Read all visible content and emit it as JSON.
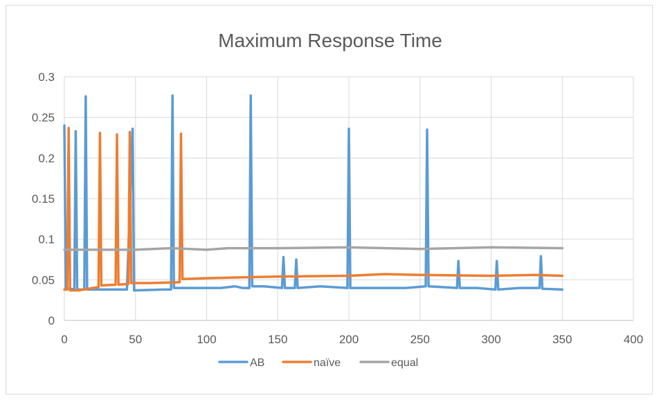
{
  "chart_data": {
    "type": "line",
    "title": "Maximum Response Time",
    "xlabel": "",
    "ylabel": "",
    "xlim": [
      0,
      400
    ],
    "ylim": [
      0,
      0.3
    ],
    "x_ticks": [
      0,
      50,
      100,
      150,
      200,
      250,
      300,
      350,
      400
    ],
    "x_tick_labels": [
      "0",
      "50",
      "100",
      "150",
      "200",
      "250",
      "300",
      "350",
      "400"
    ],
    "y_ticks": [
      0,
      0.05,
      0.1,
      0.15,
      0.2,
      0.25,
      0.3
    ],
    "y_tick_labels": [
      "0",
      "0.05",
      "0.1",
      "0.15",
      "0.2",
      "0.25",
      "0.3"
    ],
    "grid": true,
    "legend_position": "bottom",
    "series": [
      {
        "name": "AB",
        "color": "#5b9bd5",
        "points": [
          [
            0,
            0.24
          ],
          [
            1,
            0.04
          ],
          [
            7,
            0.038
          ],
          [
            8,
            0.233
          ],
          [
            9,
            0.038
          ],
          [
            14,
            0.038
          ],
          [
            15,
            0.276
          ],
          [
            16,
            0.038
          ],
          [
            30,
            0.038
          ],
          [
            44,
            0.038
          ],
          [
            48,
            0.236
          ],
          [
            49,
            0.037
          ],
          [
            70,
            0.038
          ],
          [
            75,
            0.038
          ],
          [
            76,
            0.277
          ],
          [
            77,
            0.04
          ],
          [
            100,
            0.04
          ],
          [
            110,
            0.04
          ],
          [
            120,
            0.042
          ],
          [
            125,
            0.04
          ],
          [
            130,
            0.04
          ],
          [
            131,
            0.277
          ],
          [
            132,
            0.042
          ],
          [
            140,
            0.042
          ],
          [
            153,
            0.04
          ],
          [
            154,
            0.078
          ],
          [
            155,
            0.04
          ],
          [
            162,
            0.04
          ],
          [
            163,
            0.075
          ],
          [
            164,
            0.04
          ],
          [
            180,
            0.042
          ],
          [
            199,
            0.04
          ],
          [
            200,
            0.236
          ],
          [
            201,
            0.04
          ],
          [
            220,
            0.04
          ],
          [
            240,
            0.04
          ],
          [
            254,
            0.042
          ],
          [
            255,
            0.235
          ],
          [
            256,
            0.042
          ],
          [
            276,
            0.04
          ],
          [
            277,
            0.073
          ],
          [
            278,
            0.04
          ],
          [
            290,
            0.04
          ],
          [
            303,
            0.038
          ],
          [
            304,
            0.073
          ],
          [
            305,
            0.038
          ],
          [
            320,
            0.04
          ],
          [
            334,
            0.04
          ],
          [
            335,
            0.079
          ],
          [
            336,
            0.039
          ],
          [
            350,
            0.038
          ]
        ]
      },
      {
        "name": "naïve",
        "color": "#ed7d31",
        "points": [
          [
            0,
            0.038
          ],
          [
            2,
            0.038
          ],
          [
            3,
            0.237
          ],
          [
            4,
            0.037
          ],
          [
            10,
            0.037
          ],
          [
            20,
            0.04
          ],
          [
            24,
            0.041
          ],
          [
            25,
            0.231
          ],
          [
            26,
            0.043
          ],
          [
            36,
            0.044
          ],
          [
            37,
            0.229
          ],
          [
            38,
            0.044
          ],
          [
            45,
            0.045
          ],
          [
            46,
            0.232
          ],
          [
            47,
            0.046
          ],
          [
            60,
            0.046
          ],
          [
            81,
            0.047
          ],
          [
            82,
            0.23
          ],
          [
            83,
            0.051
          ],
          [
            100,
            0.052
          ],
          [
            150,
            0.054
          ],
          [
            200,
            0.055
          ],
          [
            225,
            0.057
          ],
          [
            250,
            0.056
          ],
          [
            300,
            0.055
          ],
          [
            330,
            0.056
          ],
          [
            350,
            0.055
          ]
        ]
      },
      {
        "name": "equal",
        "color": "#a5a5a5",
        "points": [
          [
            0,
            0.087
          ],
          [
            50,
            0.087
          ],
          [
            75,
            0.089
          ],
          [
            100,
            0.087
          ],
          [
            115,
            0.089
          ],
          [
            150,
            0.089
          ],
          [
            200,
            0.09
          ],
          [
            250,
            0.088
          ],
          [
            300,
            0.09
          ],
          [
            350,
            0.089
          ]
        ]
      }
    ]
  }
}
